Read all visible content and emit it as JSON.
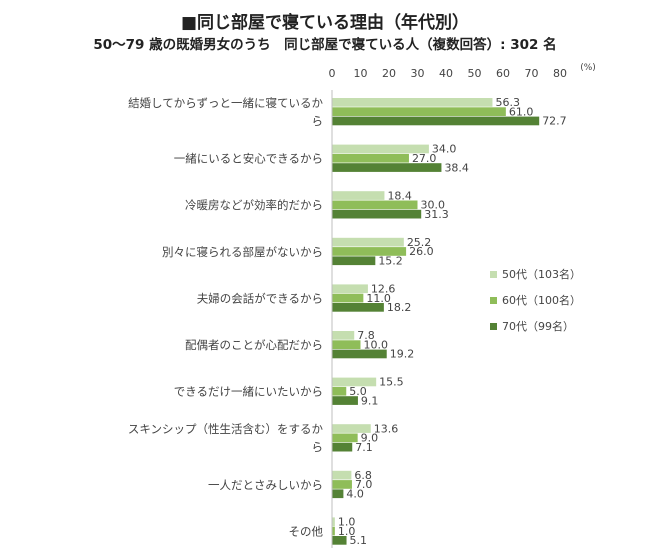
{
  "chart_data": {
    "type": "bar",
    "orientation": "horizontal",
    "title": "■同じ部屋で寝ている理由（年代別）",
    "subtitle": "50〜79 歳の既婚男女のうち　同じ部屋で寝ている人（複数回答）: 302 名",
    "unit": "(%)",
    "xlim": [
      0,
      80
    ],
    "xticks": [
      0,
      10,
      20,
      30,
      40,
      50,
      60,
      70,
      80
    ],
    "grid": false,
    "legend_position": "right",
    "categories": [
      [
        "結婚してからずっと一緒に寝ているか",
        "ら"
      ],
      [
        "一緒にいると安心できるから"
      ],
      [
        "冷暖房などが効率的だから"
      ],
      [
        "別々に寝られる部屋がないから"
      ],
      [
        "夫婦の会話ができるから"
      ],
      [
        "配偶者のことが心配だから"
      ],
      [
        "できるだけ一緒にいたいから"
      ],
      [
        "スキンシップ（性生活含む）をするか",
        "ら"
      ],
      [
        "一人だとさみしいから"
      ],
      [
        "その他"
      ]
    ],
    "series": [
      {
        "name": "50代（103名）",
        "color": "#c5deb0",
        "values": [
          56.3,
          34.0,
          18.4,
          25.2,
          12.6,
          7.8,
          15.5,
          13.6,
          6.8,
          1.0
        ]
      },
      {
        "name": "60代（100名）",
        "color": "#8fbd59",
        "values": [
          61.0,
          27.0,
          30.0,
          26.0,
          11.0,
          10.0,
          5.0,
          9.0,
          7.0,
          1.0
        ]
      },
      {
        "name": "70代（99名）",
        "color": "#548235",
        "values": [
          72.7,
          38.4,
          31.3,
          15.2,
          18.2,
          19.2,
          9.1,
          7.1,
          4.0,
          5.1
        ]
      }
    ],
    "value_labels": [
      [
        "56.3",
        "61.0",
        "72.7"
      ],
      [
        "34.0",
        "27.0",
        "38.4"
      ],
      [
        "18.4",
        "30.0",
        "31.3"
      ],
      [
        "25.2",
        "26.0",
        "15.2"
      ],
      [
        "12.6",
        "11.0",
        "18.2"
      ],
      [
        "7.8",
        "10.0",
        "19.2"
      ],
      [
        "15.5",
        "5.0",
        "9.1"
      ],
      [
        "13.6",
        "9.0",
        "7.1"
      ],
      [
        "6.8",
        "7.0",
        "4.0"
      ],
      [
        "1.0",
        "1.0",
        "5.1"
      ]
    ],
    "highlight_color": "#c0392b",
    "highlighted_labels": [
      [
        1,
        2
      ],
      [
        5,
        2
      ]
    ]
  }
}
